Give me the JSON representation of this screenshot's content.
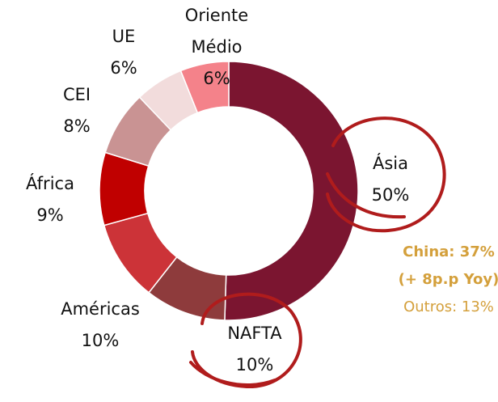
{
  "chart_data": {
    "type": "pie",
    "donut": true,
    "categories": [
      "Ásia",
      "NAFTA",
      "Américas",
      "África",
      "CEI",
      "UE",
      "Oriente Médio"
    ],
    "values": [
      50,
      10,
      10,
      9,
      8,
      6,
      6
    ],
    "value_labels": [
      "50%",
      "10%",
      "10%",
      "9%",
      "8%",
      "6%",
      "6%"
    ],
    "colors": [
      "#7b1530",
      "#8e3b3c",
      "#cc3338",
      "#c00000",
      "#c99393",
      "#f2dcdc",
      "#f4828a"
    ],
    "annotations": [
      {
        "text": "China: 37%",
        "bold": true
      },
      {
        "text": "(+ 8p.p Yoy)",
        "bold": true
      },
      {
        "text": "Outros: 13%",
        "bold": false
      }
    ]
  }
}
